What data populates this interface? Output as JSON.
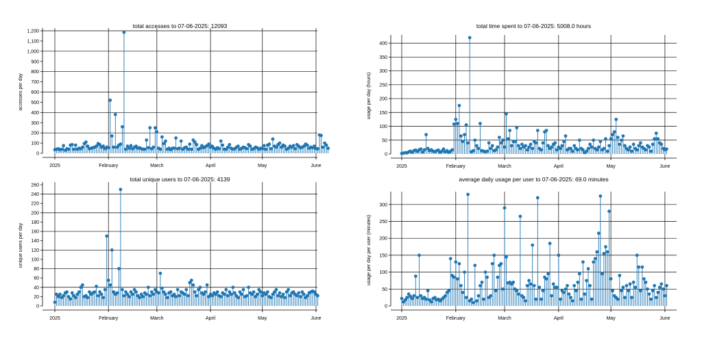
{
  "colors": {
    "stem": "#1f77b4",
    "grid": "#000000",
    "axis": "#000000"
  },
  "chart_data": [
    {
      "type": "stem",
      "title": "total accesses to 07-06-2025: 12093",
      "ylabel": "accesses per day",
      "ylim": [
        0,
        1200
      ],
      "yticks": [
        "0",
        "100",
        "200",
        "300",
        "400",
        "500",
        "600",
        "700",
        "800",
        "900",
        "1,000",
        "1,100",
        "1,200"
      ],
      "ytick_values": [
        0,
        100,
        200,
        300,
        400,
        500,
        600,
        700,
        800,
        900,
        1000,
        1100,
        1200
      ],
      "grid_every_tick": false,
      "xtick_labels": [
        "2025",
        "February",
        "March",
        "April",
        "May",
        "June"
      ],
      "xtick_days": [
        0,
        31,
        59,
        90,
        120,
        151
      ],
      "xlim_days": [
        0,
        153
      ],
      "values": [
        35,
        40,
        45,
        35,
        40,
        75,
        30,
        45,
        40,
        80,
        85,
        40,
        80,
        40,
        50,
        45,
        60,
        95,
        110,
        70,
        45,
        50,
        55,
        60,
        70,
        95,
        85,
        60,
        70,
        45,
        60,
        55,
        520,
        170,
        60,
        380,
        60,
        80,
        90,
        260,
        1185,
        40,
        70,
        50,
        75,
        45,
        60,
        70,
        50,
        55,
        45,
        40,
        40,
        130,
        55,
        250,
        45,
        60,
        250,
        210,
        50,
        40,
        160,
        95,
        120,
        40,
        50,
        35,
        50,
        50,
        150,
        45,
        50,
        120,
        40,
        55,
        60,
        40,
        90,
        40,
        130,
        110,
        85,
        40,
        50,
        75,
        55,
        65,
        75,
        90,
        60,
        70,
        50,
        40,
        55,
        45,
        120,
        80,
        40,
        40,
        60,
        85,
        50,
        40,
        45,
        60,
        70,
        40,
        50,
        60,
        55,
        45,
        85,
        70,
        40,
        45,
        60,
        55,
        40,
        50,
        45,
        75,
        40,
        80,
        90,
        45,
        140,
        70,
        60,
        85,
        100,
        60,
        80,
        70,
        40,
        50,
        70,
        60,
        75,
        45,
        85,
        70,
        55,
        60,
        70,
        90,
        80,
        50,
        60,
        55,
        70,
        45,
        45,
        180,
        175,
        60,
        100,
        80,
        50
      ]
    },
    {
      "type": "stem",
      "title": "total time spent to 07-06-2025: 5008.0 hours",
      "ylabel": "usage per day (hours)",
      "ylim": [
        0,
        420
      ],
      "yticks": [
        "0",
        "50",
        "100",
        "150",
        "200",
        "250",
        "300",
        "350",
        "400"
      ],
      "ytick_values": [
        0,
        50,
        100,
        150,
        200,
        250,
        300,
        350,
        400
      ],
      "grid_every_tick": true,
      "xtick_labels": [
        "2025",
        "February",
        "March",
        "April",
        "May",
        "June"
      ],
      "xtick_days": [
        0,
        31,
        59,
        90,
        120,
        151
      ],
      "xlim_days": [
        0,
        153
      ],
      "values": [
        2,
        3,
        5,
        4,
        8,
        10,
        6,
        12,
        14,
        9,
        15,
        18,
        7,
        15,
        70,
        20,
        12,
        15,
        10,
        8,
        12,
        14,
        6,
        10,
        18,
        8,
        12,
        6,
        10,
        15,
        108,
        125,
        110,
        175,
        65,
        45,
        70,
        105,
        40,
        420,
        8,
        12,
        50,
        30,
        20,
        110,
        12,
        10,
        8,
        10,
        40,
        20,
        30,
        12,
        15,
        25,
        60,
        40,
        50,
        25,
        145,
        55,
        85,
        30,
        45,
        45,
        95,
        30,
        20,
        35,
        25,
        30,
        15,
        25,
        35,
        20,
        45,
        40,
        85,
        20,
        15,
        40,
        80,
        85,
        30,
        20,
        25,
        35,
        40,
        15,
        25,
        20,
        30,
        45,
        65,
        15,
        20,
        20,
        10,
        30,
        20,
        15,
        50,
        20,
        15,
        5,
        10,
        20,
        35,
        25,
        50,
        20,
        15,
        25,
        45,
        15,
        20,
        55,
        10,
        30,
        55,
        70,
        80,
        125,
        60,
        35,
        50,
        65,
        30,
        20,
        15,
        25,
        10,
        35,
        20,
        15,
        30,
        40,
        25,
        20,
        15,
        30,
        25,
        10,
        35,
        55,
        75,
        55,
        40,
        35,
        20,
        15,
        18
      ]
    },
    {
      "type": "stem",
      "title": "total unique users to 07-06-2025: 4139",
      "ylabel": "unique users per day",
      "ylim": [
        0,
        260
      ],
      "yticks": [
        "0",
        "20",
        "40",
        "60",
        "80",
        "100",
        "120",
        "140",
        "160",
        "180",
        "200",
        "220",
        "240",
        "260"
      ],
      "ytick_values": [
        0,
        20,
        40,
        60,
        80,
        100,
        120,
        140,
        160,
        180,
        200,
        220,
        240,
        260
      ],
      "grid_every_tick": false,
      "xtick_labels": [
        "2025",
        "February",
        "March",
        "April",
        "May",
        "June"
      ],
      "xtick_days": [
        0,
        31,
        59,
        90,
        120,
        151
      ],
      "xlim_days": [
        0,
        153
      ],
      "values": [
        8,
        25,
        20,
        25,
        18,
        22,
        28,
        30,
        20,
        15,
        28,
        22,
        18,
        25,
        30,
        40,
        45,
        20,
        22,
        18,
        30,
        25,
        28,
        30,
        42,
        22,
        30,
        25,
        18,
        35,
        150,
        55,
        45,
        120,
        30,
        25,
        28,
        80,
        250,
        35,
        22,
        30,
        25,
        20,
        30,
        25,
        35,
        30,
        22,
        18,
        25,
        20,
        28,
        25,
        40,
        22,
        30,
        25,
        35,
        30,
        28,
        70,
        38,
        30,
        25,
        18,
        28,
        30,
        22,
        25,
        20,
        35,
        22,
        30,
        28,
        25,
        35,
        22,
        50,
        55,
        45,
        30,
        22,
        35,
        40,
        28,
        25,
        30,
        45,
        20,
        25,
        22,
        28,
        25,
        30,
        22,
        20,
        28,
        25,
        35,
        22,
        30,
        25,
        40,
        28,
        22,
        18,
        30,
        25,
        35,
        20,
        22,
        40,
        28,
        25,
        30,
        20,
        25,
        35,
        30,
        22,
        28,
        25,
        30,
        20,
        18,
        25,
        30,
        35,
        22,
        28,
        20,
        25,
        18,
        30,
        35,
        22,
        28,
        30,
        25,
        22,
        28,
        20,
        30,
        25,
        18,
        22,
        28,
        30,
        32,
        30,
        25,
        22
      ]
    },
    {
      "type": "stem",
      "title": "average daily usage per user to 07-06-2025: 69.0 minutes",
      "ylabel": "usage per day per user (minutes)",
      "ylim": [
        0,
        330
      ],
      "yticks": [
        "0",
        "50",
        "100",
        "150",
        "200",
        "250",
        "300"
      ],
      "ytick_values": [
        0,
        50,
        100,
        150,
        200,
        250,
        300
      ],
      "grid_every_tick": true,
      "xtick_labels": [
        "2025",
        "February",
        "March",
        "April",
        "May",
        "June"
      ],
      "xtick_days": [
        0,
        31,
        59,
        90,
        120,
        151
      ],
      "xlim_days": [
        0,
        153
      ],
      "values": [
        22,
        12,
        18,
        25,
        35,
        28,
        22,
        30,
        88,
        25,
        150,
        30,
        22,
        25,
        20,
        45,
        18,
        12,
        22,
        25,
        18,
        20,
        15,
        20,
        25,
        30,
        40,
        45,
        140,
        90,
        85,
        130,
        80,
        125,
        60,
        40,
        100,
        25,
        330,
        15,
        20,
        10,
        120,
        15,
        30,
        60,
        70,
        20,
        100,
        85,
        25,
        30,
        125,
        150,
        45,
        85,
        120,
        125,
        50,
        290,
        145,
        68,
        70,
        65,
        70,
        50,
        45,
        35,
        265,
        30,
        25,
        15,
        60,
        75,
        65,
        180,
        60,
        20,
        320,
        55,
        20,
        45,
        85,
        80,
        95,
        185,
        30,
        65,
        55,
        55,
        150,
        20,
        45,
        40,
        50,
        60,
        35,
        25,
        15,
        60,
        45,
        70,
        95,
        20,
        130,
        35,
        75,
        110,
        60,
        20,
        130,
        140,
        160,
        215,
        325,
        95,
        155,
        175,
        160,
        280,
        80,
        45,
        30,
        25,
        20,
        90,
        45,
        55,
        25,
        60,
        45,
        65,
        25,
        70,
        55,
        150,
        115,
        45,
        115,
        80,
        70,
        50,
        35,
        20,
        45,
        60,
        25,
        40,
        55,
        65,
        50,
        30,
        60
      ]
    }
  ]
}
